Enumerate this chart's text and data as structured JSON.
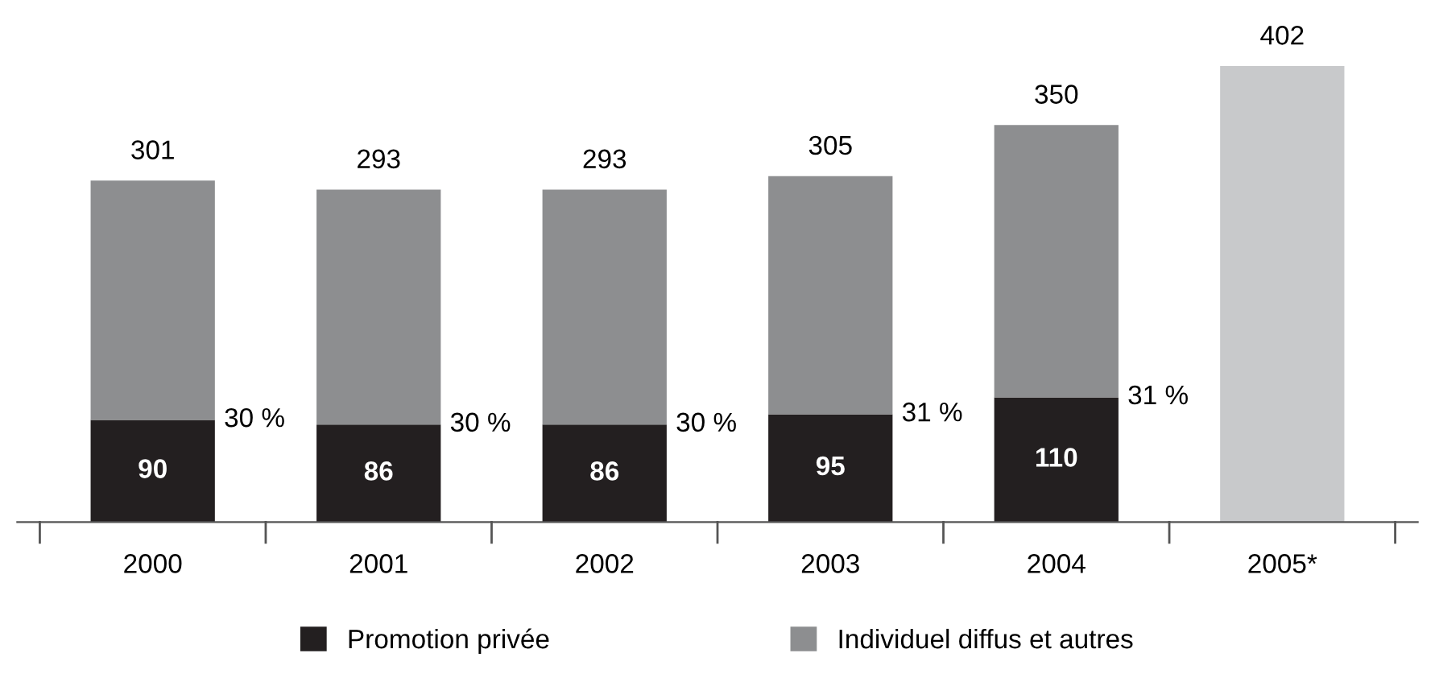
{
  "chart_data": {
    "type": "bar",
    "stacked": true,
    "categories": [
      "2000",
      "2001",
      "2002",
      "2003",
      "2004",
      "2005*"
    ],
    "series": [
      {
        "name": "Promotion privée",
        "color": "#231f20",
        "values": [
          90,
          86,
          86,
          95,
          110,
          null
        ],
        "value_labels": [
          "90",
          "86",
          "86",
          "95",
          "110",
          null
        ]
      },
      {
        "name": "Individuel diffus et autres",
        "color": "#8d8e90",
        "colors": [
          "#8d8e90",
          "#8d8e90",
          "#8d8e90",
          "#8d8e90",
          "#8d8e90",
          "#c8c9cb"
        ],
        "values": [
          211,
          207,
          207,
          210,
          240,
          402
        ]
      }
    ],
    "totals": [
      "301",
      "293",
      "293",
      "305",
      "350",
      "402"
    ],
    "annotations": [
      {
        "text": "30 %",
        "x": "2000",
        "y": 90
      },
      {
        "text": "30 %",
        "x": "2001",
        "y": 86
      },
      {
        "text": "30 %",
        "x": "2002",
        "y": 86
      },
      {
        "text": "31 %",
        "x": "2003",
        "y": 95
      },
      {
        "text": "31 %",
        "x": "2004",
        "y": 110
      }
    ],
    "grid": false,
    "legend": "bottom",
    "tick_labels": "x"
  }
}
